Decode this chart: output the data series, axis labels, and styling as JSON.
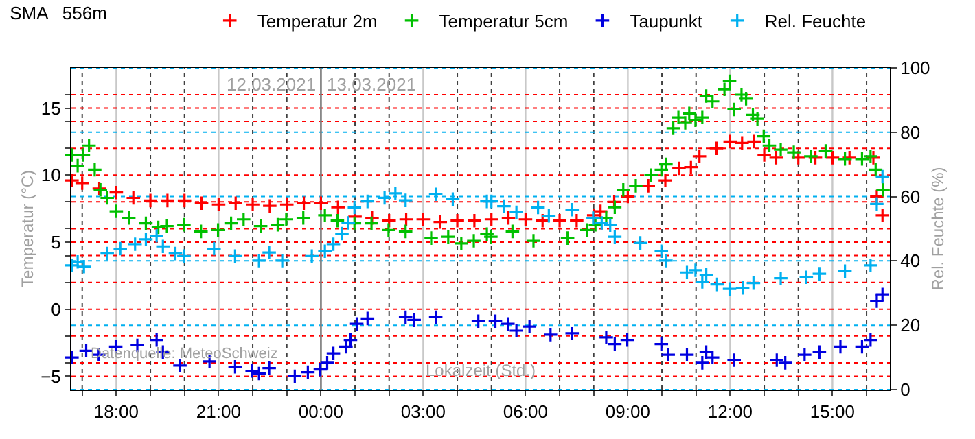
{
  "chart_data": {
    "type": "scatter",
    "title": "SMA   556m",
    "ylabel": "Temperatur (°C)",
    "y2label": "Rel. Feuchte (%)",
    "marker": "cross",
    "legend": "top",
    "grid": true,
    "xlim": [
      "2021-03-12T16:41",
      "2021-03-13T16:41"
    ],
    "xticks": [
      {
        "value": "2021-03-12T17:00",
        "label": null
      },
      {
        "value": "2021-03-12T18:00",
        "label": "18:00"
      },
      {
        "value": "2021-03-12T19:00",
        "label": null
      },
      {
        "value": "2021-03-12T20:00",
        "label": null
      },
      {
        "value": "2021-03-12T21:00",
        "label": "21:00"
      },
      {
        "value": "2021-03-12T22:00",
        "label": null
      },
      {
        "value": "2021-03-12T23:00",
        "label": null
      },
      {
        "value": "2021-03-13T00:00",
        "label": "00:00"
      },
      {
        "value": "2021-03-13T01:00",
        "label": null
      },
      {
        "value": "2021-03-13T02:00",
        "label": null
      },
      {
        "value": "2021-03-13T03:00",
        "label": "03:00"
      },
      {
        "value": "2021-03-13T04:00",
        "label": null
      },
      {
        "value": "2021-03-13T05:00",
        "label": null
      },
      {
        "value": "2021-03-13T06:00",
        "label": "06:00"
      },
      {
        "value": "2021-03-13T07:00",
        "label": null
      },
      {
        "value": "2021-03-13T08:00",
        "label": null
      },
      {
        "value": "2021-03-13T09:00",
        "label": "09:00"
      },
      {
        "value": "2021-03-13T10:00",
        "label": null
      },
      {
        "value": "2021-03-13T11:00",
        "label": null
      },
      {
        "value": "2021-03-13T12:00",
        "label": "12:00"
      },
      {
        "value": "2021-03-13T13:00",
        "label": null
      },
      {
        "value": "2021-03-13T14:00",
        "label": null
      },
      {
        "value": "2021-03-13T15:00",
        "label": "15:00"
      },
      {
        "value": "2021-03-13T16:00",
        "label": null
      }
    ],
    "ylim": [
      -6,
      18
    ],
    "yticks": [
      {
        "value": -4,
        "label": null
      },
      {
        "value": -2,
        "label": null
      },
      {
        "value": 2,
        "label": null
      },
      {
        "value": 4,
        "label": null
      },
      {
        "value": 6,
        "label": null
      },
      {
        "value": 8,
        "label": null
      },
      {
        "value": 12,
        "label": null
      },
      {
        "value": 14,
        "label": null
      },
      {
        "value": 16,
        "label": null
      },
      -5,
      0,
      5,
      10,
      15
    ],
    "y2lim": [
      0,
      100
    ],
    "y2ticks": [
      0,
      20,
      40,
      60,
      80,
      100
    ],
    "ref_lines": [
      {
        "axis": "x",
        "value": "2021-03-13T00:00",
        "color": "#808080"
      }
    ],
    "annotations": [
      {
        "text": "12.03.2021",
        "x": "2021-03-13T00:00",
        "y": 16.8
      },
      {
        "text": "13.03.2021",
        "x": "2021-03-13T00:00",
        "y": 16.8
      },
      "Lokalzeit (Std.)",
      "Datenquelle: MeteoSchweiz"
    ],
    "series": [
      {
        "name": "Temperatur 2m",
        "color": "#ff0000",
        "x": [
          "2021-03-12T16:42",
          "2021-03-12T17:00",
          "2021-03-12T17:30",
          "2021-03-12T18:00",
          "2021-03-12T18:30",
          "2021-03-12T19:00",
          "2021-03-12T19:30",
          "2021-03-12T20:00",
          "2021-03-12T20:30",
          "2021-03-12T21:00",
          "2021-03-12T21:30",
          "2021-03-12T22:00",
          "2021-03-12T22:30",
          "2021-03-12T23:00",
          "2021-03-12T23:30",
          "2021-03-13T00:00",
          "2021-03-13T00:30",
          "2021-03-13T01:00",
          "2021-03-13T01:30",
          "2021-03-13T02:00",
          "2021-03-13T02:30",
          "2021-03-13T03:00",
          "2021-03-13T03:30",
          "2021-03-13T04:00",
          "2021-03-13T04:30",
          "2021-03-13T05:00",
          "2021-03-13T05:30",
          "2021-03-13T06:00",
          "2021-03-13T06:30",
          "2021-03-13T07:00",
          "2021-03-13T07:30",
          "2021-03-13T08:00",
          "2021-03-13T08:12",
          "2021-03-13T08:36",
          "2021-03-13T09:00",
          "2021-03-13T09:36",
          "2021-03-13T10:06",
          "2021-03-13T10:30",
          "2021-03-13T10:51",
          "2021-03-13T11:06",
          "2021-03-13T11:36",
          "2021-03-13T12:00",
          "2021-03-13T12:21",
          "2021-03-13T12:42",
          "2021-03-13T13:00",
          "2021-03-13T13:21",
          "2021-03-13T14:00",
          "2021-03-13T14:30",
          "2021-03-13T15:00",
          "2021-03-13T15:30",
          "2021-03-13T16:12",
          "2021-03-13T16:18",
          "2021-03-13T16:28"
        ],
        "values": [
          9.6,
          9.4,
          9.0,
          8.7,
          8.3,
          8.1,
          8.1,
          8.1,
          7.9,
          7.8,
          7.9,
          7.8,
          7.7,
          7.8,
          7.9,
          7.9,
          7.6,
          6.9,
          6.8,
          6.6,
          6.7,
          6.7,
          6.5,
          6.6,
          6.6,
          6.7,
          6.8,
          6.7,
          6.6,
          6.6,
          6.6,
          7.0,
          7.3,
          8.0,
          8.4,
          9.2,
          9.6,
          10.5,
          10.6,
          11.4,
          12.0,
          12.5,
          12.4,
          12.5,
          11.5,
          11.3,
          11.3,
          11.3,
          11.3,
          11.3,
          11.3,
          8.4,
          7.0
        ]
      },
      {
        "name": "Temperatur 5cm",
        "color": "#00c000",
        "x": [
          "2021-03-12T16:42",
          "2021-03-12T16:52",
          "2021-03-12T17:02",
          "2021-03-12T17:12",
          "2021-03-12T17:22",
          "2021-03-12T17:32",
          "2021-03-12T17:44",
          "2021-03-12T18:00",
          "2021-03-12T18:22",
          "2021-03-12T18:52",
          "2021-03-12T19:14",
          "2021-03-12T19:29",
          "2021-03-12T19:59",
          "2021-03-12T20:29",
          "2021-03-12T20:59",
          "2021-03-12T21:22",
          "2021-03-12T21:44",
          "2021-03-12T22:14",
          "2021-03-12T22:44",
          "2021-03-12T22:59",
          "2021-03-12T23:29",
          "2021-03-13T00:07",
          "2021-03-13T00:29",
          "2021-03-13T00:59",
          "2021-03-13T01:29",
          "2021-03-13T01:59",
          "2021-03-13T02:29",
          "2021-03-13T03:14",
          "2021-03-13T03:44",
          "2021-03-13T04:07",
          "2021-03-13T04:29",
          "2021-03-13T04:52",
          "2021-03-13T04:59",
          "2021-03-13T05:37",
          "2021-03-13T06:14",
          "2021-03-13T07:14",
          "2021-03-13T07:48",
          "2021-03-13T08:03",
          "2021-03-13T08:22",
          "2021-03-13T08:37",
          "2021-03-13T08:52",
          "2021-03-13T09:14",
          "2021-03-13T09:41",
          "2021-03-13T09:59",
          "2021-03-13T10:07",
          "2021-03-13T10:20",
          "2021-03-13T10:29",
          "2021-03-13T10:41",
          "2021-03-13T10:48",
          "2021-03-13T10:59",
          "2021-03-13T11:11",
          "2021-03-13T11:18",
          "2021-03-13T11:29",
          "2021-03-13T11:50",
          "2021-03-13T11:59",
          "2021-03-13T12:07",
          "2021-03-13T12:20",
          "2021-03-13T12:28",
          "2021-03-13T12:40",
          "2021-03-13T12:48",
          "2021-03-13T12:59",
          "2021-03-13T13:09",
          "2021-03-13T13:29",
          "2021-03-13T13:52",
          "2021-03-13T14:22",
          "2021-03-13T14:48",
          "2021-03-13T15:22",
          "2021-03-13T15:52",
          "2021-03-13T16:07",
          "2021-03-13T16:16",
          "2021-03-13T16:29"
        ],
        "values": [
          11.5,
          10.7,
          11.5,
          12.2,
          10.4,
          8.9,
          8.3,
          7.3,
          6.8,
          6.4,
          6.1,
          6.2,
          6.3,
          5.8,
          5.9,
          6.4,
          6.7,
          6.2,
          6.3,
          6.7,
          6.8,
          7.0,
          6.6,
          6.4,
          6.4,
          5.9,
          5.8,
          5.3,
          5.4,
          4.9,
          5.1,
          5.6,
          5.4,
          5.8,
          5.1,
          5.3,
          5.9,
          6.3,
          6.8,
          7.6,
          8.9,
          9.2,
          10.0,
          10.4,
          10.8,
          13.5,
          14.3,
          13.9,
          14.6,
          14.1,
          14.3,
          15.9,
          15.5,
          16.4,
          17.0,
          14.9,
          16.0,
          15.7,
          14.5,
          14.2,
          12.9,
          12.2,
          11.9,
          11.7,
          11.4,
          11.8,
          11.2,
          11.2,
          11.4,
          10.4,
          8.9
        ]
      },
      {
        "name": "Taupunkt",
        "color": "#0000e0",
        "x": [
          "2021-03-12T16:42",
          "2021-03-12T17:07",
          "2021-03-12T17:29",
          "2021-03-12T17:59",
          "2021-03-12T18:37",
          "2021-03-12T19:11",
          "2021-03-12T19:22",
          "2021-03-12T19:52",
          "2021-03-12T20:44",
          "2021-03-12T21:29",
          "2021-03-12T21:59",
          "2021-03-12T22:11",
          "2021-03-12T22:29",
          "2021-03-12T23:14",
          "2021-03-12T23:37",
          "2021-03-12T23:59",
          "2021-03-13T00:11",
          "2021-03-13T00:22",
          "2021-03-13T00:44",
          "2021-03-13T00:52",
          "2021-03-13T01:03",
          "2021-03-13T01:22",
          "2021-03-13T02:29",
          "2021-03-13T02:44",
          "2021-03-13T03:22",
          "2021-03-13T04:37",
          "2021-03-13T05:07",
          "2021-03-13T05:29",
          "2021-03-13T05:44",
          "2021-03-13T06:07",
          "2021-03-13T06:44",
          "2021-03-13T07:22",
          "2021-03-13T08:22",
          "2021-03-13T08:37",
          "2021-03-13T08:59",
          "2021-03-13T09:59",
          "2021-03-13T10:11",
          "2021-03-13T10:44",
          "2021-03-13T11:11",
          "2021-03-13T11:18",
          "2021-03-13T11:29",
          "2021-03-13T12:07",
          "2021-03-13T13:22",
          "2021-03-13T13:37",
          "2021-03-13T14:11",
          "2021-03-13T14:37",
          "2021-03-13T15:14",
          "2021-03-13T15:52",
          "2021-03-13T16:07",
          "2021-03-13T16:18",
          "2021-03-13T16:28"
        ],
        "values": [
          -3.6,
          -3.1,
          -3.4,
          -2.8,
          -2.7,
          -2.3,
          -3.2,
          -4.2,
          -3.9,
          -4.3,
          -4.6,
          -4.8,
          -4.4,
          -5.0,
          -4.7,
          -4.5,
          -4.0,
          -3.3,
          -2.8,
          -2.3,
          -1.1,
          -0.7,
          -0.6,
          -0.8,
          -0.6,
          -0.9,
          -0.9,
          -1.1,
          -1.6,
          -1.3,
          -1.9,
          -1.8,
          -2.1,
          -2.6,
          -2.3,
          -2.6,
          -3.4,
          -3.4,
          -4.0,
          -3.2,
          -3.6,
          -3.8,
          -3.8,
          -4.0,
          -3.4,
          -3.2,
          -2.8,
          -2.8,
          -2.3,
          0.6,
          1.1
        ]
      },
      {
        "name": "Rel. Feuchte",
        "color": "#00b0f0",
        "axis": "y2",
        "x": [
          "2021-03-12T16:42",
          "2021-03-12T16:52",
          "2021-03-12T17:03",
          "2021-03-12T17:44",
          "2021-03-12T18:07",
          "2021-03-12T18:33",
          "2021-03-12T18:52",
          "2021-03-12T19:11",
          "2021-03-12T19:22",
          "2021-03-12T19:44",
          "2021-03-12T19:59",
          "2021-03-12T20:52",
          "2021-03-12T21:29",
          "2021-03-12T22:11",
          "2021-03-12T22:29",
          "2021-03-12T22:52",
          "2021-03-12T23:44",
          "2021-03-13T00:07",
          "2021-03-13T00:22",
          "2021-03-13T00:37",
          "2021-03-13T00:48",
          "2021-03-13T00:59",
          "2021-03-13T01:22",
          "2021-03-13T01:52",
          "2021-03-13T02:11",
          "2021-03-13T02:29",
          "2021-03-13T03:22",
          "2021-03-13T03:52",
          "2021-03-13T04:52",
          "2021-03-13T05:00",
          "2021-03-13T05:22",
          "2021-03-13T05:44",
          "2021-03-13T06:22",
          "2021-03-13T06:41",
          "2021-03-13T07:22",
          "2021-03-13T07:59",
          "2021-03-13T08:14",
          "2021-03-13T08:29",
          "2021-03-13T08:37",
          "2021-03-13T09:22",
          "2021-03-13T09:59",
          "2021-03-13T10:07",
          "2021-03-13T10:44",
          "2021-03-13T10:59",
          "2021-03-13T11:11",
          "2021-03-13T11:18",
          "2021-03-13T11:37",
          "2021-03-13T11:59",
          "2021-03-13T12:22",
          "2021-03-13T12:41",
          "2021-03-13T13:29",
          "2021-03-13T14:14",
          "2021-03-13T14:37",
          "2021-03-13T15:22",
          "2021-03-13T16:07",
          "2021-03-13T16:18",
          "2021-03-13T16:28"
        ],
        "values": [
          38.6,
          39.7,
          38.2,
          42.3,
          43.8,
          45.2,
          46.7,
          47.8,
          44.5,
          42.3,
          41.5,
          43.8,
          41.5,
          40.1,
          42.6,
          40.1,
          41.5,
          43.0,
          45.2,
          48.5,
          51.8,
          56.6,
          58.5,
          59.6,
          61.0,
          58.8,
          60.7,
          59.2,
          58.5,
          58.5,
          57.0,
          55.1,
          56.6,
          54.0,
          55.9,
          53.3,
          51.8,
          51.1,
          47.5,
          45.6,
          43.0,
          40.1,
          36.4,
          37.1,
          33.5,
          35.7,
          32.7,
          31.3,
          31.6,
          33.1,
          34.6,
          34.9,
          36.0,
          36.8,
          38.6,
          57.7,
          66.2
        ]
      }
    ]
  }
}
